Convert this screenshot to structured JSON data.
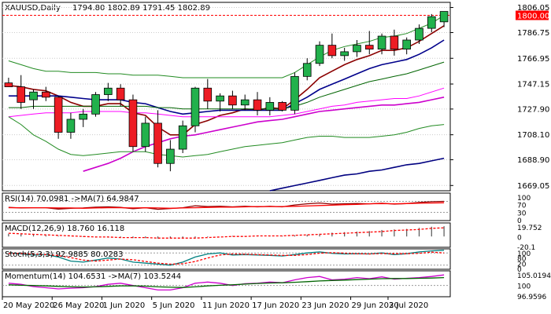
{
  "chart_data": {
    "type": "candlestick",
    "symbol_label": "XAUUSD,Daily",
    "ohlc_label": "1794.80 1802.89 1791.45 1802.89",
    "current_price_label": "1800.00",
    "current_price": 1800.0,
    "colors": {
      "bull": "#22b14c",
      "bear": "#ed1c24",
      "grid": "#cccccc",
      "price_line": "#ff0000"
    },
    "price_axis": {
      "min": 1665,
      "max": 1810,
      "ticks": [
        "1669.05",
        "1688.90",
        "1708.10",
        "1727.90",
        "1747.15",
        "1766.95",
        "1786.75",
        "1806.05"
      ]
    },
    "x_labels": [
      "20 May 2020",
      "26 May 2020",
      "1 Jun 2020",
      "5 Jun 2020",
      "11 Jun 2020",
      "17 Jun 2020",
      "23 Jun 2020",
      "29 Jun 2020",
      "3 Jul 2020"
    ],
    "candles": [
      {
        "o": 1748,
        "h": 1752,
        "l": 1745,
        "c": 1745
      },
      {
        "o": 1745,
        "h": 1754,
        "l": 1728,
        "c": 1733
      },
      {
        "o": 1735,
        "h": 1743,
        "l": 1728,
        "c": 1741
      },
      {
        "o": 1741,
        "h": 1745,
        "l": 1734,
        "c": 1737
      },
      {
        "o": 1737,
        "h": 1738,
        "l": 1705,
        "c": 1710
      },
      {
        "o": 1710,
        "h": 1725,
        "l": 1705,
        "c": 1720
      },
      {
        "o": 1720,
        "h": 1728,
        "l": 1714,
        "c": 1724
      },
      {
        "o": 1724,
        "h": 1741,
        "l": 1722,
        "c": 1739
      },
      {
        "o": 1739,
        "h": 1748,
        "l": 1734,
        "c": 1744
      },
      {
        "o": 1744,
        "h": 1747,
        "l": 1730,
        "c": 1735
      },
      {
        "o": 1735,
        "h": 1739,
        "l": 1695,
        "c": 1699
      },
      {
        "o": 1699,
        "h": 1722,
        "l": 1695,
        "c": 1717
      },
      {
        "o": 1717,
        "h": 1727,
        "l": 1683,
        "c": 1686
      },
      {
        "o": 1686,
        "h": 1704,
        "l": 1680,
        "c": 1697
      },
      {
        "o": 1697,
        "h": 1719,
        "l": 1694,
        "c": 1715
      },
      {
        "o": 1715,
        "h": 1745,
        "l": 1710,
        "c": 1744
      },
      {
        "o": 1744,
        "h": 1751,
        "l": 1728,
        "c": 1734
      },
      {
        "o": 1734,
        "h": 1740,
        "l": 1726,
        "c": 1738
      },
      {
        "o": 1738,
        "h": 1742,
        "l": 1728,
        "c": 1731
      },
      {
        "o": 1731,
        "h": 1739,
        "l": 1727,
        "c": 1735
      },
      {
        "o": 1735,
        "h": 1741,
        "l": 1723,
        "c": 1727
      },
      {
        "o": 1727,
        "h": 1737,
        "l": 1723,
        "c": 1733
      },
      {
        "o": 1733,
        "h": 1734,
        "l": 1726,
        "c": 1727
      },
      {
        "o": 1727,
        "h": 1756,
        "l": 1724,
        "c": 1753
      },
      {
        "o": 1753,
        "h": 1767,
        "l": 1750,
        "c": 1763
      },
      {
        "o": 1763,
        "h": 1780,
        "l": 1761,
        "c": 1777
      },
      {
        "o": 1777,
        "h": 1786,
        "l": 1767,
        "c": 1769
      },
      {
        "o": 1769,
        "h": 1775,
        "l": 1765,
        "c": 1772
      },
      {
        "o": 1772,
        "h": 1781,
        "l": 1768,
        "c": 1777
      },
      {
        "o": 1777,
        "h": 1788,
        "l": 1770,
        "c": 1774
      },
      {
        "o": 1774,
        "h": 1786,
        "l": 1770,
        "c": 1784
      },
      {
        "o": 1784,
        "h": 1789,
        "l": 1769,
        "c": 1774
      },
      {
        "o": 1774,
        "h": 1783,
        "l": 1770,
        "c": 1781
      },
      {
        "o": 1781,
        "h": 1793,
        "l": 1778,
        "c": 1790
      },
      {
        "o": 1790,
        "h": 1801,
        "l": 1787,
        "c": 1799
      },
      {
        "o": 1795,
        "h": 1803,
        "l": 1791,
        "c": 1803
      }
    ],
    "overlays": [
      {
        "color": "#8b0000",
        "values": [
          1746,
          1745,
          1743,
          1742,
          1738,
          1733,
          1730,
          1730,
          1732,
          1732,
          1725,
          1723,
          1714,
          1708,
          1708,
          1716,
          1719,
          1723,
          1725,
          1728,
          1727,
          1729,
          1728,
          1735,
          1743,
          1752,
          1757,
          1762,
          1766,
          1769,
          1773,
          1773,
          1775,
          1780,
          1786,
          1792
        ]
      },
      {
        "color": "#00008b",
        "values": [
          1738,
          1738,
          1738,
          1738,
          1738,
          1737,
          1736,
          1735,
          1735,
          1735,
          1733,
          1732,
          1729,
          1726,
          1724,
          1725,
          1726,
          1727,
          1727,
          1727,
          1727,
          1727,
          1727,
          1732,
          1737,
          1743,
          1747,
          1751,
          1755,
          1759,
          1762,
          1764,
          1766,
          1770,
          1775,
          1781
        ]
      },
      {
        "color": "#006400",
        "values": [
          1729,
          1729,
          1730,
          1730,
          1730,
          1730,
          1730,
          1730,
          1730,
          1730,
          1730,
          1730,
          1729,
          1729,
          1728,
          1728,
          1728,
          1728,
          1728,
          1728,
          1728,
          1728,
          1728,
          1730,
          1733,
          1737,
          1740,
          1743,
          1746,
          1749,
          1751,
          1753,
          1755,
          1758,
          1761,
          1764
        ]
      },
      {
        "color": "#ff00ff",
        "values": [
          1722,
          1723,
          1724,
          1725,
          1725,
          1725,
          1726,
          1726,
          1726,
          1726,
          1725,
          1725,
          1724,
          1723,
          1722,
          1722,
          1722,
          1722,
          1722,
          1722,
          1722,
          1722,
          1723,
          1724,
          1726,
          1728,
          1730,
          1731,
          1733,
          1734,
          1735,
          1736,
          1736,
          1738,
          1741,
          1744
        ]
      },
      {
        "color": "#cc00cc",
        "values": [
          null,
          null,
          null,
          null,
          null,
          null,
          1680,
          1683,
          1686,
          1690,
          1695,
          1699,
          1702,
          1705,
          1707,
          1708,
          1710,
          1712,
          1714,
          1716,
          1718,
          1719,
          1720,
          1722,
          1724,
          1726,
          1727,
          1728,
          1729,
          1730,
          1731,
          1731,
          1732,
          1733,
          1735,
          1737
        ]
      },
      {
        "color": "#000080",
        "values": [
          null,
          null,
          null,
          null,
          null,
          null,
          null,
          null,
          null,
          null,
          null,
          null,
          null,
          null,
          null,
          null,
          null,
          null,
          null,
          null,
          null,
          1665,
          1667,
          1669,
          1671,
          1673,
          1675,
          1677,
          1678,
          1680,
          1681,
          1683,
          1685,
          1686,
          1688,
          1690
        ]
      },
      {
        "color": "#228b22",
        "values": [
          1765,
          1762,
          1759,
          1757,
          1757,
          1756,
          1756,
          1756,
          1755,
          1755,
          1754,
          1754,
          1754,
          1753,
          1752,
          1752,
          1752,
          1752,
          1752,
          1752,
          1752,
          1752,
          1752,
          1756,
          1762,
          1768,
          1773,
          1776,
          1778,
          1780,
          1783,
          1784,
          1786,
          1790,
          1794,
          1800
        ]
      },
      {
        "color": "#228b22",
        "values": [
          1722,
          1716,
          1708,
          1703,
          1697,
          1693,
          1692,
          1693,
          1694,
          1695,
          1695,
          1695,
          1693,
          1692,
          1691,
          1692,
          1693,
          1695,
          1697,
          1699,
          1700,
          1701,
          1702,
          1704,
          1706,
          1707,
          1707,
          1706,
          1706,
          1706,
          1707,
          1708,
          1710,
          1713,
          1715,
          1716
        ]
      }
    ],
    "indicators": [
      {
        "label": "RSI(14) 70.0981 ->MA(7) 64.9847",
        "scale_labels": [
          "100",
          "70",
          "30",
          "0"
        ],
        "range": [
          0,
          100
        ],
        "levels": [
          70,
          30
        ],
        "lines": [
          {
            "color": "#8b0000",
            "values": [
              48,
              46,
              47,
              47,
              42,
              45,
              46,
              49,
              50,
              48,
              43,
              47,
              41,
              44,
              47,
              54,
              51,
              52,
              50,
              52,
              50,
              52,
              50,
              57,
              61,
              64,
              60,
              61,
              62,
              61,
              63,
              60,
              62,
              66,
              69,
              70
            ]
          },
          {
            "color": "#ff0000",
            "values": [
              47,
              47,
              47,
              47,
              46,
              46,
              45,
              46,
              47,
              47,
              46,
              47,
              46,
              45,
              46,
              47,
              48,
              49,
              49,
              50,
              51,
              51,
              51,
              52,
              53,
              55,
              56,
              58,
              59,
              61,
              62,
              61,
              62,
              63,
              64,
              65
            ]
          }
        ]
      },
      {
        "label": "MACD(12,26,9) 18.760 16.118",
        "scale_labels": [
          "19.752",
          "0",
          "-20.1"
        ],
        "range": [
          -20,
          25
        ],
        "histogram": {
          "color": "#555555",
          "values": [
            5,
            4,
            3,
            2,
            1,
            0,
            -1,
            -2,
            -2,
            -2,
            -3,
            -3,
            -4,
            -4,
            -3,
            -2,
            -1,
            0,
            1,
            1,
            1,
            1,
            1,
            2,
            3,
            5,
            7,
            8,
            9,
            10,
            12,
            13,
            14,
            16,
            18,
            19
          ]
        },
        "lines": [
          {
            "color": "#ff0000",
            "values": [
              6,
              5,
              4,
              3,
              2,
              1,
              0,
              -1,
              -1,
              -2,
              -2,
              -2,
              -3,
              -3,
              -3,
              -3,
              -2,
              -1,
              0,
              0,
              1,
              1,
              1,
              2,
              3,
              4,
              5,
              6,
              7,
              8,
              9,
              11,
              12,
              13,
              15,
              16
            ]
          }
        ]
      },
      {
        "label": "Stoch(5,3,3) 92.9885 80.0283",
        "scale_labels": [
          "100",
          "80",
          "20",
          "0"
        ],
        "range": [
          0,
          100
        ],
        "levels": [
          80,
          20
        ],
        "lines": [
          {
            "color": "#008080",
            "values": [
              80,
              75,
              70,
              72,
              60,
              40,
              35,
              45,
              55,
              50,
              35,
              30,
              25,
              20,
              35,
              60,
              75,
              80,
              70,
              72,
              70,
              68,
              65,
              72,
              80,
              85,
              78,
              75,
              76,
              75,
              80,
              72,
              76,
              85,
              90,
              93
            ]
          },
          {
            "color": "#ff0000",
            "values": [
              78,
              77,
              74,
              72,
              67,
              57,
              45,
              40,
              45,
              50,
              47,
              38,
              30,
              25,
              27,
              38,
              55,
              70,
              75,
              74,
              72,
              70,
              68,
              68,
              72,
              79,
              81,
              79,
              76,
              75,
              77,
              76,
              76,
              78,
              84,
              80
            ]
          }
        ]
      },
      {
        "label": "Momentum(14) 104.6531 ->MA(7) 103.5244",
        "scale_labels": [
          "105.0194",
          "100",
          "96.9596"
        ],
        "range": [
          95,
          106.5
        ],
        "levels": [
          100
        ],
        "lines": [
          {
            "color": "#cc00cc",
            "values": [
              101,
              100.5,
              99.5,
              99,
              98.5,
              98.8,
              99,
              99.5,
              100.5,
              101,
              100,
              99,
              98,
              98,
              99,
              101,
              101.5,
              101,
              100,
              100.8,
              101,
              101.5,
              101.2,
              102.5,
              103.5,
              104,
              102.5,
              102.8,
              103.5,
              103,
              103.8,
              102.8,
              103.2,
              103.5,
              104,
              104.7
            ]
          },
          {
            "color": "#006400",
            "values": [
              100.3,
              100.1,
              100,
              99.8,
              99.6,
              99.4,
              99.3,
              99.4,
              99.6,
              99.8,
              99.8,
              99.7,
              99.4,
              99.2,
              99.1,
              99.4,
              99.8,
              100.1,
              100.3,
              100.6,
              100.9,
              101.1,
              101.2,
              101.4,
              101.7,
              102,
              102.2,
              102.4,
              102.6,
              102.8,
              103,
              103.1,
              103.1,
              103.2,
              103.3,
              103.5
            ]
          }
        ]
      }
    ]
  }
}
